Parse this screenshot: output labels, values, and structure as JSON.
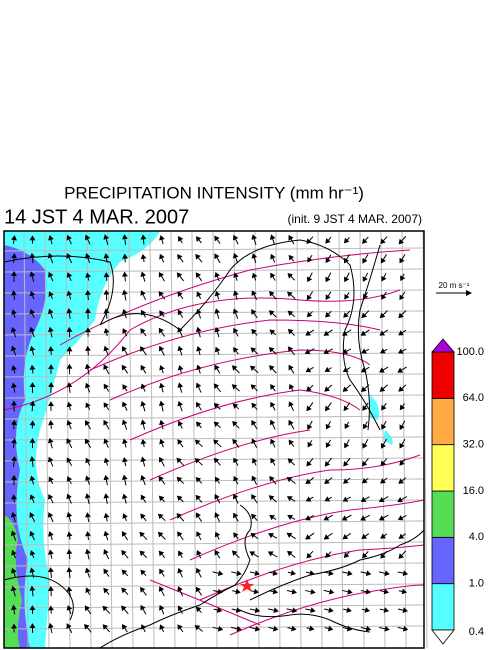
{
  "header": {
    "title": "PRECIPITATION INTENSITY (mm hr⁻¹)",
    "valid_time": "14 JST 4 MAR. 2007",
    "init_time": "(init. 9 JST 4 MAR. 2007)"
  },
  "reference_arrow": {
    "label": "20 m s⁻¹"
  },
  "colorbar": {
    "levels": [
      "0.4",
      "1.0",
      "4.0",
      "16.0",
      "32.0",
      "64.0",
      "100.0"
    ],
    "colors": [
      "#55ffff",
      "#6666ff",
      "#55dd55",
      "#ffff55",
      "#ffaa44",
      "#ee0000"
    ],
    "over_color": "#aa00dd",
    "under_color": "#ffffff"
  }
}
